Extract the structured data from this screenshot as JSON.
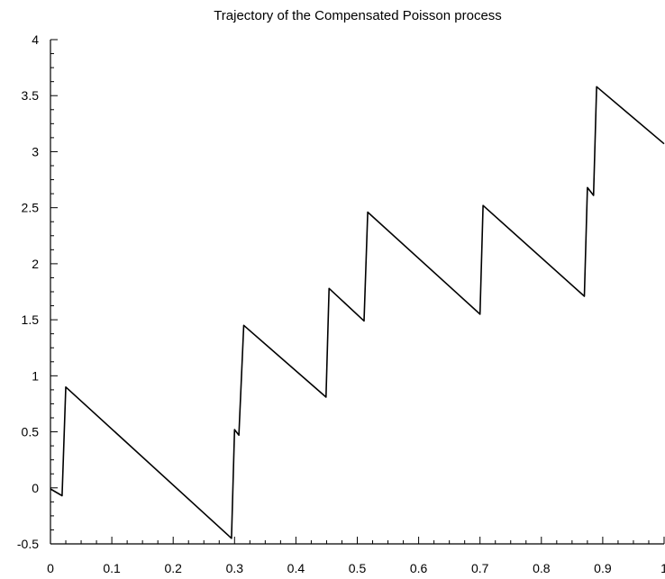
{
  "chart_data": {
    "type": "line",
    "title": "Trajectory of the Compensated Poisson process",
    "xlabel": "",
    "ylabel": "",
    "xlim": [
      0,
      1
    ],
    "ylim": [
      -0.5,
      4
    ],
    "x_ticks": [
      "0",
      "0.1",
      "0.2",
      "0.3",
      "0.4",
      "0.5",
      "0.6",
      "0.7",
      "0.8",
      "0.9",
      "1"
    ],
    "y_ticks": [
      "-0.5",
      "0",
      "0.5",
      "1",
      "1.5",
      "2",
      "2.5",
      "3",
      "3.5",
      "4"
    ],
    "grid": false,
    "series": [
      {
        "color": "#000000",
        "x": [
          0,
          0.019,
          0.025,
          0.295,
          0.3,
          0.307,
          0.315,
          0.449,
          0.454,
          0.511,
          0.517,
          0.7,
          0.705,
          0.87,
          0.875,
          0.885,
          0.89,
          1.0
        ],
        "y": [
          -0.01,
          -0.07,
          0.9,
          -0.45,
          0.52,
          0.47,
          1.45,
          0.81,
          1.78,
          1.49,
          2.46,
          1.55,
          2.52,
          1.71,
          2.68,
          2.61,
          3.58,
          3.07
        ]
      }
    ]
  }
}
